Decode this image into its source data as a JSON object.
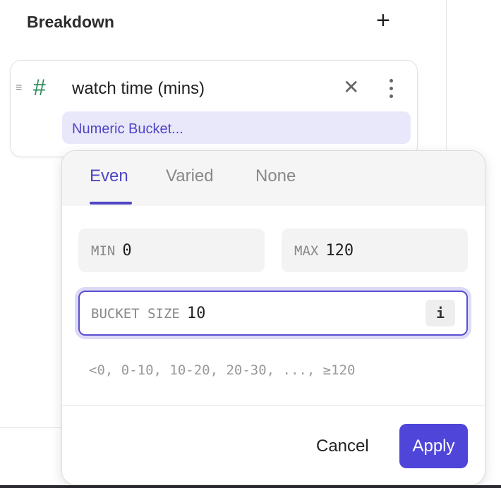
{
  "header": {
    "title": "Breakdown",
    "add_icon": "+"
  },
  "breakdown_item": {
    "drag_icon": "≡",
    "type_icon": "#",
    "field_name": "watch time (mins)",
    "remove_icon": "✕",
    "bucket_label": "Numeric Bucket..."
  },
  "popover": {
    "tabs": [
      {
        "label": "Even",
        "active": true
      },
      {
        "label": "Varied",
        "active": false
      },
      {
        "label": "None",
        "active": false
      }
    ],
    "min": {
      "label": "MIN",
      "value": "0"
    },
    "max": {
      "label": "MAX",
      "value": "120"
    },
    "bucket_size": {
      "label": "BUCKET SIZE",
      "value": "10",
      "info_icon": "i"
    },
    "preview": "<0, 0-10, 10-20, 20-30, ..., ≥120",
    "cancel_label": "Cancel",
    "apply_label": "Apply"
  },
  "colors": {
    "accent": "#4f45d9",
    "chip_bg": "#e9e8fb",
    "type_icon": "#2e8b57"
  }
}
